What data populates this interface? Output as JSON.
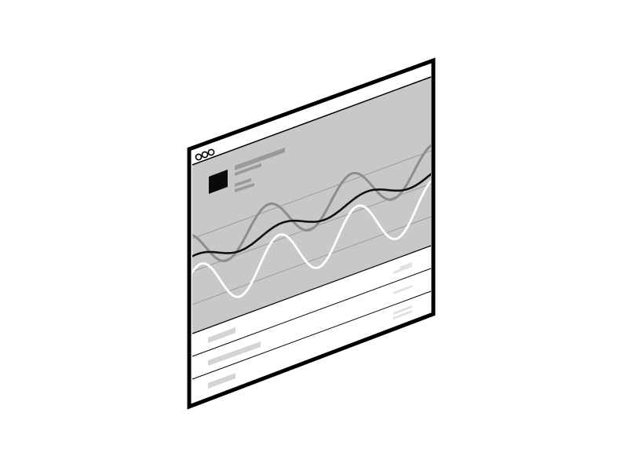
{
  "illustration": {
    "kind": "isometric-browser-window-wireframe",
    "window_controls": [
      "close-dot",
      "minimize-dot",
      "maximize-dot"
    ],
    "header": {
      "avatar_icon": "square-avatar-placeholder",
      "text_lines": 4
    },
    "chart": {
      "type": "line",
      "line_count": 3,
      "gridline_count": 3,
      "line_colors": {
        "primary": "#111111",
        "secondary": "#8c8c8c",
        "highlight": "#ffffff"
      }
    },
    "table": {
      "row_count": 3
    },
    "colors": {
      "background": "#ffffff",
      "frame": "#000000",
      "panel": "#c8c8c8",
      "placeholder_dark": "#9a9a9a",
      "placeholder_light": "#d4d4d4",
      "avatar": "#0a0a0a"
    }
  }
}
